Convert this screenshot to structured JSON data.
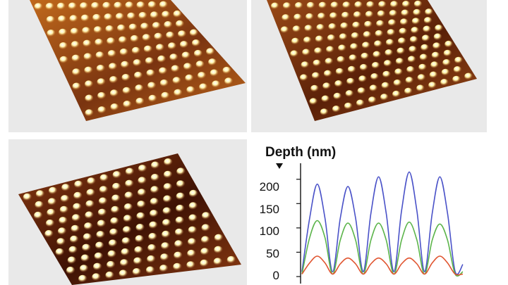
{
  "figure": {
    "panels": [
      {
        "name": "afm-surface-1",
        "pattern": "rounded bumps, mixed contrast",
        "colors": {
          "base": "#c0691c",
          "dark": "#7a3410",
          "bump": "#fff0a8"
        }
      },
      {
        "name": "afm-surface-2",
        "pattern": "hexagonal dot array",
        "colors": {
          "base": "#9a4a17",
          "dark": "#5a2008",
          "bump": "#fff1a0"
        }
      },
      {
        "name": "afm-surface-3",
        "pattern": "hexagonal dot array, deep pits",
        "colors": {
          "base": "#8a3a12",
          "dark": "#3e1204",
          "bump": "#fff4b0"
        }
      }
    ]
  },
  "chart_data": {
    "type": "line",
    "title": "",
    "ylabel": "Depth (nm)",
    "xlabel": "",
    "y_ticks": [
      "200",
      "150",
      "100",
      "50",
      "0"
    ],
    "ylim": [
      0,
      230
    ],
    "x": [
      0,
      0.5,
      1,
      1.5,
      2,
      2.5,
      3,
      3.5,
      4,
      4.5,
      5,
      5.5,
      6,
      6.5,
      7,
      7.5,
      8,
      8.5,
      9,
      9.5,
      10,
      10.5
    ],
    "series": [
      {
        "color": "#4a52c8",
        "values": [
          10,
          120,
          190,
          120,
          10,
          120,
          185,
          120,
          10,
          130,
          205,
          130,
          10,
          135,
          215,
          135,
          10,
          130,
          205,
          130,
          10,
          25
        ]
      },
      {
        "color": "#5bb44a",
        "values": [
          5,
          80,
          115,
          80,
          5,
          75,
          110,
          75,
          5,
          75,
          110,
          75,
          5,
          75,
          112,
          75,
          5,
          75,
          108,
          75,
          5,
          10
        ]
      },
      {
        "color": "#e0542f",
        "values": [
          5,
          28,
          42,
          28,
          5,
          26,
          38,
          26,
          5,
          26,
          38,
          26,
          5,
          26,
          38,
          26,
          5,
          28,
          42,
          28,
          5,
          5
        ]
      }
    ]
  }
}
